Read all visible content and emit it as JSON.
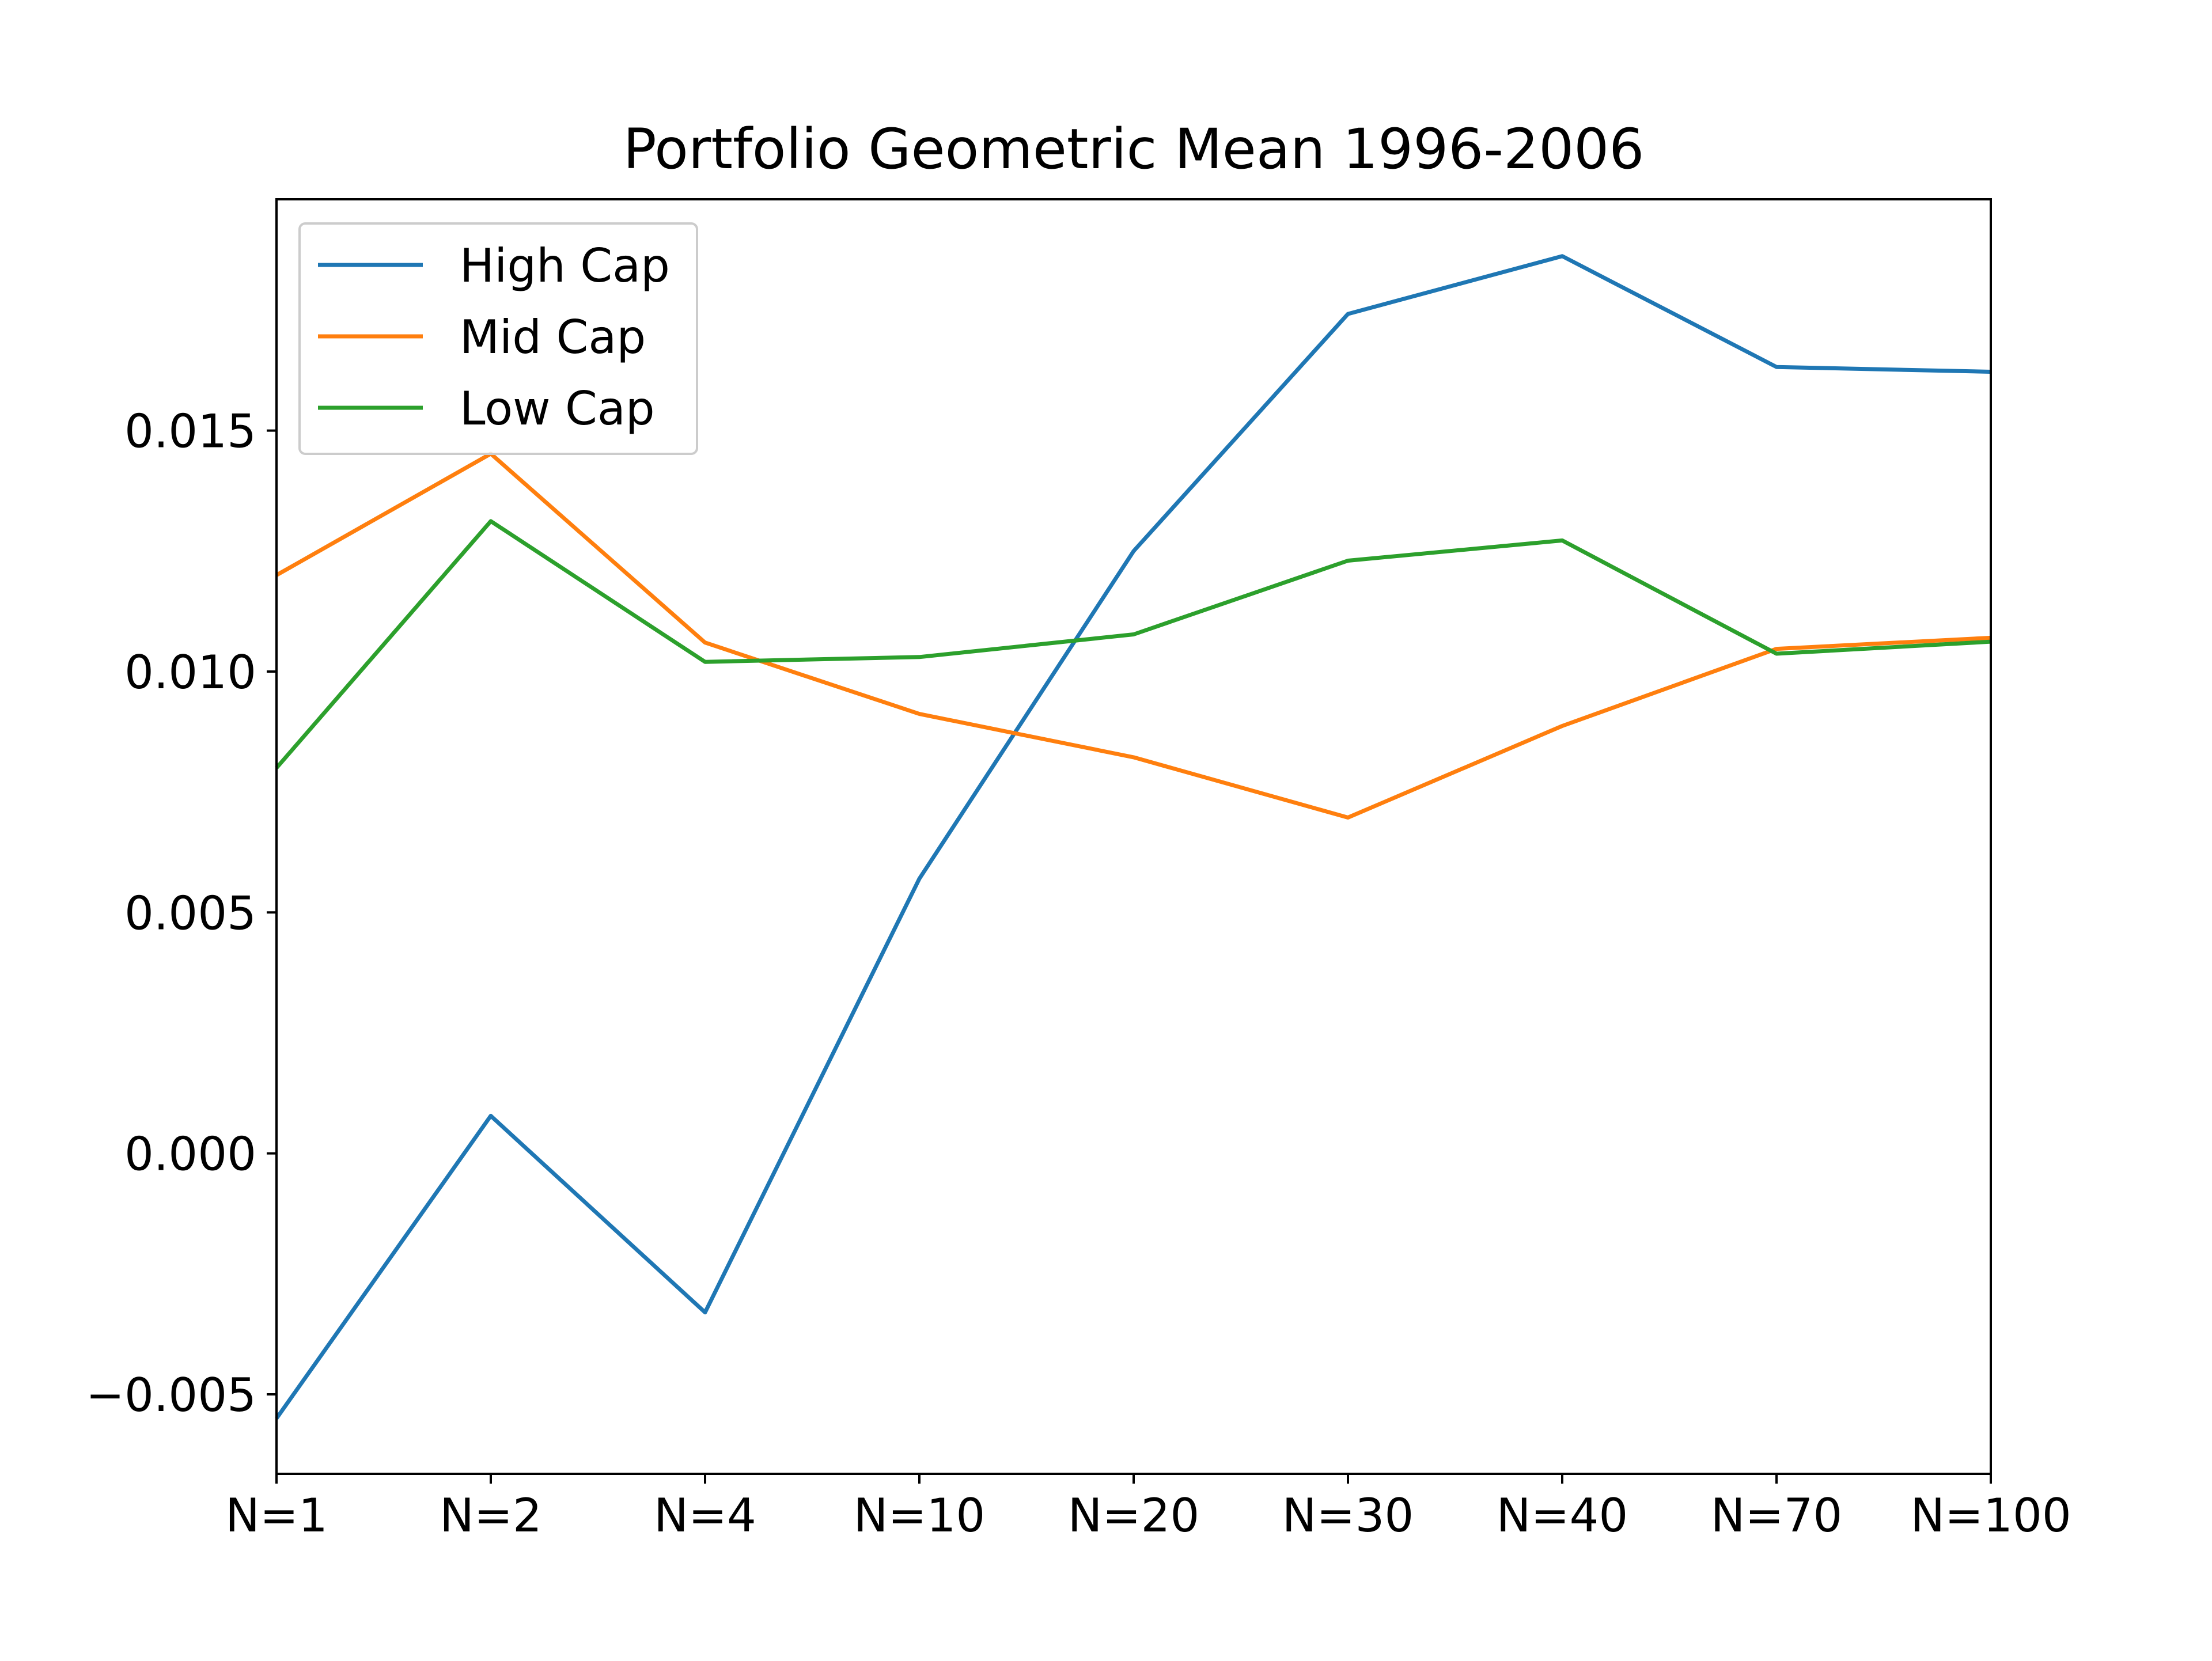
{
  "chart_data": {
    "type": "line",
    "title": "Portfolio Geometric Mean 1996-2006",
    "xlabel": "",
    "ylabel": "",
    "categories": [
      "N=1",
      "N=2",
      "N=4",
      "N=10",
      "N=20",
      "N=30",
      "N=40",
      "N=70",
      "N=100"
    ],
    "ylim": [
      -0.00665,
      0.0198
    ],
    "yticks": [
      -0.005,
      0.0,
      0.005,
      0.01,
      0.015
    ],
    "ytick_labels": [
      "−0.005",
      "0.000",
      "0.005",
      "0.010",
      "0.015"
    ],
    "grid": false,
    "legend_position": "upper-left",
    "series": [
      {
        "name": "High Cap",
        "color": "#1f77b4",
        "values": [
          -0.0055,
          0.00078,
          -0.0033,
          0.0057,
          0.0125,
          0.01742,
          0.01862,
          0.01632,
          0.01622
        ]
      },
      {
        "name": "Mid Cap",
        "color": "#ff7f0e",
        "values": [
          0.012,
          0.01452,
          0.0106,
          0.00912,
          0.00822,
          0.00697,
          0.00887,
          0.01047,
          0.0107
        ]
      },
      {
        "name": "Low Cap",
        "color": "#2ca02c",
        "values": [
          0.008,
          0.01312,
          0.0102,
          0.0103,
          0.01077,
          0.0123,
          0.01272,
          0.01037,
          0.01062
        ]
      }
    ]
  }
}
